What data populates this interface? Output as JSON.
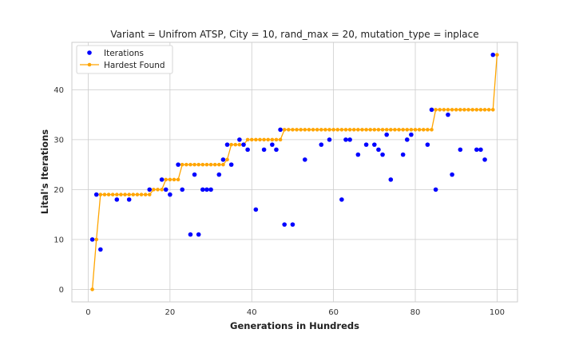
{
  "chart_data": {
    "type": "scatter",
    "title": "Variant = Unifrom ATSP, City = 10, rand_max = 20, mutation_type = inplace",
    "xlabel": "Generations in Hundreds",
    "ylabel": "Lital's Iterations",
    "xlim": [
      -4,
      105
    ],
    "ylim": [
      -2.5,
      49.5
    ],
    "xticks": [
      0,
      20,
      40,
      60,
      80,
      100
    ],
    "yticks": [
      0,
      10,
      20,
      30,
      40
    ],
    "grid": true,
    "legend_position": "top-left",
    "series": [
      {
        "name": "Iterations",
        "kind": "scatter",
        "color": "#0000ff",
        "x": [
          1,
          2,
          3,
          7,
          10,
          15,
          18,
          19,
          20,
          22,
          23,
          25,
          26,
          27,
          28,
          29,
          30,
          32,
          33,
          34,
          35,
          37,
          38,
          39,
          41,
          43,
          45,
          46,
          47,
          48,
          50,
          53,
          57,
          59,
          62,
          63,
          64,
          66,
          68,
          70,
          71,
          72,
          73,
          74,
          77,
          78,
          79,
          83,
          84,
          85,
          88,
          89,
          91,
          95,
          96,
          97,
          99
        ],
        "y": [
          10,
          19,
          8,
          18,
          18,
          20,
          22,
          20,
          19,
          25,
          20,
          11,
          23,
          11,
          20,
          20,
          20,
          23,
          26,
          29,
          25,
          30,
          29,
          28,
          16,
          28,
          29,
          28,
          32,
          13,
          13,
          26,
          29,
          30,
          18,
          30,
          30,
          27,
          29,
          29,
          28,
          27,
          31,
          22,
          27,
          30,
          31,
          29,
          36,
          20,
          35,
          23,
          28,
          28,
          28,
          26,
          47
        ]
      },
      {
        "name": "Hardest Found",
        "kind": "line",
        "color": "#ffa500",
        "x": [
          1,
          2,
          3,
          4,
          5,
          6,
          7,
          8,
          9,
          10,
          11,
          12,
          13,
          14,
          15,
          16,
          17,
          18,
          19,
          20,
          21,
          22,
          23,
          24,
          25,
          26,
          27,
          28,
          29,
          30,
          31,
          32,
          33,
          34,
          35,
          36,
          37,
          38,
          39,
          40,
          41,
          42,
          43,
          44,
          45,
          46,
          47,
          48,
          49,
          50,
          51,
          52,
          53,
          54,
          55,
          56,
          57,
          58,
          59,
          60,
          61,
          62,
          63,
          64,
          65,
          66,
          67,
          68,
          69,
          70,
          71,
          72,
          73,
          74,
          75,
          76,
          77,
          78,
          79,
          80,
          81,
          82,
          83,
          84,
          85,
          86,
          87,
          88,
          89,
          90,
          91,
          92,
          93,
          94,
          95,
          96,
          97,
          98,
          99,
          100
        ],
        "y": [
          0,
          10,
          19,
          19,
          19,
          19,
          19,
          19,
          19,
          19,
          19,
          19,
          19,
          19,
          19,
          20,
          20,
          20,
          22,
          22,
          22,
          22,
          25,
          25,
          25,
          25,
          25,
          25,
          25,
          25,
          25,
          25,
          25,
          26,
          29,
          29,
          29,
          29,
          30,
          30,
          30,
          30,
          30,
          30,
          30,
          30,
          30,
          32,
          32,
          32,
          32,
          32,
          32,
          32,
          32,
          32,
          32,
          32,
          32,
          32,
          32,
          32,
          32,
          32,
          32,
          32,
          32,
          32,
          32,
          32,
          32,
          32,
          32,
          32,
          32,
          32,
          32,
          32,
          32,
          32,
          32,
          32,
          32,
          32,
          36,
          36,
          36,
          36,
          36,
          36,
          36,
          36,
          36,
          36,
          36,
          36,
          36,
          36,
          36,
          47
        ]
      }
    ]
  }
}
